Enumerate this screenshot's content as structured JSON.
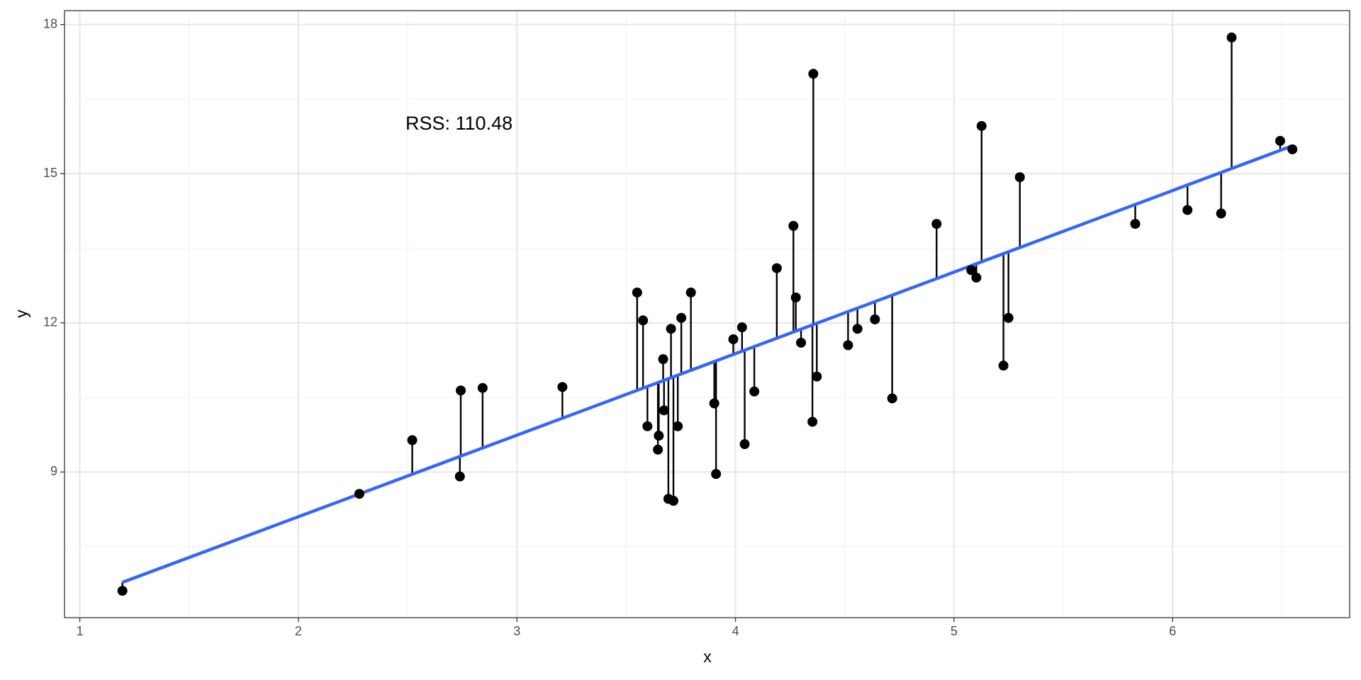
{
  "chart_data": {
    "type": "scatter",
    "x_label": "x",
    "y_label": "y",
    "annotation": "RSS: 110.48",
    "x": [
      1.195,
      2.279,
      2.521,
      2.739,
      2.743,
      2.843,
      3.208,
      3.55,
      3.577,
      3.597,
      3.645,
      3.649,
      3.669,
      3.673,
      3.693,
      3.705,
      3.716,
      3.736,
      3.752,
      3.796,
      3.903,
      3.911,
      3.99,
      4.03,
      4.042,
      4.086,
      4.189,
      4.265,
      4.276,
      4.3,
      4.352,
      4.356,
      4.372,
      4.515,
      4.558,
      4.638,
      4.717,
      4.92,
      5.079,
      5.102,
      5.126,
      5.226,
      5.249,
      5.301,
      5.829,
      6.068,
      6.222,
      6.27,
      6.492,
      6.548
    ],
    "y": [
      6.61,
      8.56,
      9.64,
      8.91,
      10.64,
      10.69,
      10.71,
      12.61,
      12.05,
      9.92,
      9.45,
      9.73,
      11.27,
      10.24,
      8.46,
      11.88,
      8.42,
      9.92,
      12.1,
      12.61,
      10.38,
      8.96,
      11.67,
      11.91,
      9.56,
      10.62,
      13.1,
      13.95,
      12.51,
      11.6,
      10.01,
      17.01,
      10.92,
      11.55,
      11.88,
      12.07,
      10.48,
      13.99,
      13.06,
      12.91,
      15.96,
      11.14,
      12.1,
      14.93,
      13.99,
      14.27,
      14.2,
      17.74,
      15.66,
      15.49
    ],
    "color": "#000000",
    "fit": {
      "x": [
        1.195,
        6.548
      ],
      "y": [
        6.78,
        15.56
      ],
      "color": "#3366ff"
    },
    "xlim": [
      0.93,
      6.81
    ],
    "ylim": [
      6.07,
      18.28
    ],
    "xticks": [
      1,
      2,
      3,
      4,
      5,
      6
    ],
    "yticks": [
      9,
      12,
      15,
      18
    ],
    "grid": true
  }
}
